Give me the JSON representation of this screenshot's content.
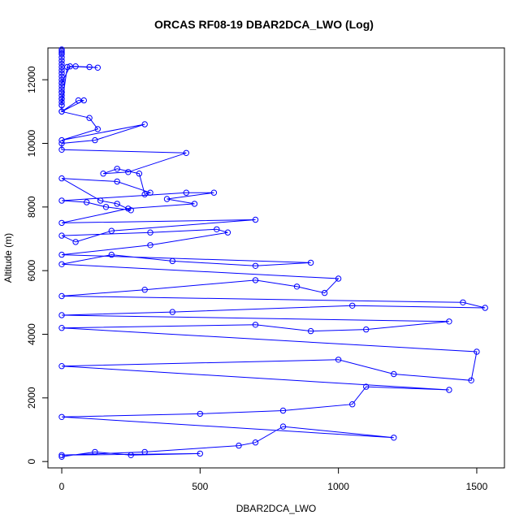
{
  "chart_data": {
    "type": "line",
    "title": "ORCAS RF08-19 DBAR2DCA_LWO (Log)",
    "xlabel": "DBAR2DCA_LWO",
    "ylabel": "Altitude (m)",
    "xlim": [
      -50,
      1600
    ],
    "ylim": [
      -200,
      13000
    ],
    "x_ticks": [
      0,
      500,
      1000,
      1500
    ],
    "y_ticks": [
      0,
      2000,
      4000,
      6000,
      8000,
      10000,
      12000
    ],
    "grid": false,
    "colors": {
      "series": "#0000ff",
      "frame": "#000000"
    },
    "series": [
      {
        "x": [
          0,
          0,
          0,
          0,
          0,
          0,
          0,
          0,
          0,
          0,
          0,
          0,
          0,
          0,
          0,
          0,
          0,
          0,
          0,
          0,
          20,
          50,
          100,
          130,
          30,
          0,
          0,
          0,
          0,
          0,
          80,
          60,
          0,
          100,
          130,
          0,
          300,
          120,
          0,
          0,
          450,
          240,
          150,
          200,
          280,
          300,
          320,
          200,
          0,
          140,
          200,
          250,
          160,
          90,
          0,
          450,
          550,
          380,
          480,
          240,
          0,
          700,
          180,
          50,
          0,
          320,
          560,
          600,
          320,
          0,
          900,
          700,
          400,
          180,
          0,
          1000,
          950,
          850,
          700,
          300,
          0,
          1450,
          1530,
          1050,
          400,
          0,
          1400,
          1100,
          900,
          700,
          0,
          1500,
          1480,
          1200,
          1000,
          0,
          1400,
          1100,
          1050,
          800,
          500,
          0,
          1200,
          800,
          700,
          640,
          300,
          0,
          500,
          250,
          120,
          0
        ],
        "y": [
          12950,
          12900,
          12850,
          12800,
          12700,
          12600,
          12500,
          12400,
          12300,
          12200,
          12100,
          12000,
          11900,
          11800,
          11700,
          11600,
          11500,
          11400,
          11300,
          11200,
          12400,
          12420,
          12400,
          12380,
          12420,
          11900,
          11600,
          11400,
          11200,
          11000,
          11350,
          11350,
          11000,
          10800,
          10450,
          10100,
          10600,
          10100,
          10000,
          9800,
          9700,
          9100,
          9050,
          9200,
          9050,
          8400,
          8450,
          8800,
          8900,
          8200,
          8100,
          7900,
          8000,
          8150,
          8200,
          8450,
          8450,
          8250,
          8100,
          7950,
          7500,
          7600,
          7250,
          6900,
          7100,
          7200,
          7300,
          7200,
          6800,
          6500,
          6250,
          6150,
          6300,
          6500,
          6200,
          5750,
          5300,
          5500,
          5700,
          5400,
          5200,
          5000,
          4830,
          4900,
          4700,
          4600,
          4400,
          4150,
          4100,
          4300,
          4200,
          3450,
          2550,
          2750,
          3200,
          3000,
          2250,
          2350,
          1800,
          1600,
          1500,
          1400,
          750,
          1100,
          600,
          500,
          300,
          200,
          250,
          200,
          300,
          150
        ]
      }
    ]
  }
}
